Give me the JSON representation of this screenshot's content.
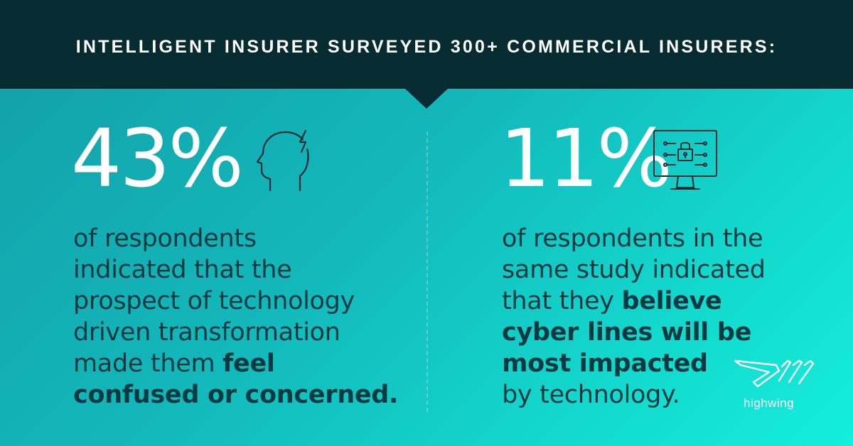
{
  "header": {
    "title": "INTELLIGENT INSURER SURVEYED 300+ COMMERCIAL INSURERS:"
  },
  "left": {
    "stat": "43%",
    "icon": "head-lightning-icon",
    "text_lines": [
      "of respondents",
      "indicated that the",
      "prospect of technology",
      "driven transformation",
      "made them "
    ],
    "bold_1": "feel",
    "bold_2": "confused or concerned."
  },
  "right": {
    "stat": "11%",
    "icon": "monitor-lock-icon",
    "line1": "of respondents in the",
    "line2": "same study indicated",
    "line3_plain": "that they ",
    "line3_bold": "believe",
    "line4_bold": "cyber lines will be",
    "line5_bold": "most impacted",
    "line6": "by technology."
  },
  "logo": {
    "text": "highwing"
  },
  "colors": {
    "header_bg": "#062b30",
    "text_dark": "#083b41",
    "accent_teal": "#13b8bb"
  }
}
